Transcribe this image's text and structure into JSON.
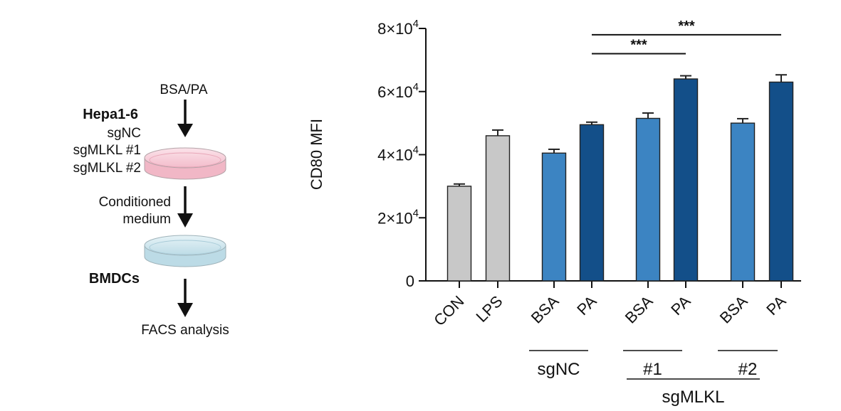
{
  "schematic": {
    "treatment": "BSA/PA",
    "cell_line": "Hepa1-6",
    "cell_groups": [
      "sgNC",
      "sgMLKL #1",
      "sgMLKL #2"
    ],
    "conditioned_line1": "Conditioned",
    "conditioned_line2": "medium",
    "target_cells": "BMDCs",
    "readout": "FACS analysis"
  },
  "chart_data": {
    "type": "bar",
    "ylabel": "CD80 MFI",
    "ylim": [
      0,
      80000
    ],
    "yticks": [
      {
        "value": 0,
        "label": "0"
      },
      {
        "value": 20000,
        "label": "2×10",
        "exp": "4"
      },
      {
        "value": 40000,
        "label": "4×10",
        "exp": "4"
      },
      {
        "value": 60000,
        "label": "6×10",
        "exp": "4"
      },
      {
        "value": 80000,
        "label": "8×10",
        "exp": "4"
      }
    ],
    "categories": [
      "CON",
      "LPS",
      "BSA",
      "PA",
      "BSA",
      "PA",
      "BSA",
      "PA"
    ],
    "values": [
      30000,
      46000,
      40500,
      49500,
      51500,
      64000,
      50000,
      63000
    ],
    "errors": [
      700,
      1800,
      1200,
      800,
      1700,
      1000,
      1400,
      2300
    ],
    "bar_colors": [
      "#c8c8c8",
      "#c8c8c8",
      "#3c84c2",
      "#134f89",
      "#3c84c2",
      "#134f89",
      "#3c84c2",
      "#134f89"
    ],
    "groups": [
      {
        "label": "sgNC",
        "bars": [
          2,
          3
        ]
      },
      {
        "label": "#1",
        "bars": [
          4,
          5
        ]
      },
      {
        "label": "#2",
        "bars": [
          6,
          7
        ]
      }
    ],
    "supergroup": {
      "label": "sgMLKL"
    },
    "significance": [
      {
        "from": 3,
        "to": 5,
        "label": "***",
        "y": 72000
      },
      {
        "from": 3,
        "to": 7,
        "label": "***",
        "y": 78000
      }
    ]
  }
}
